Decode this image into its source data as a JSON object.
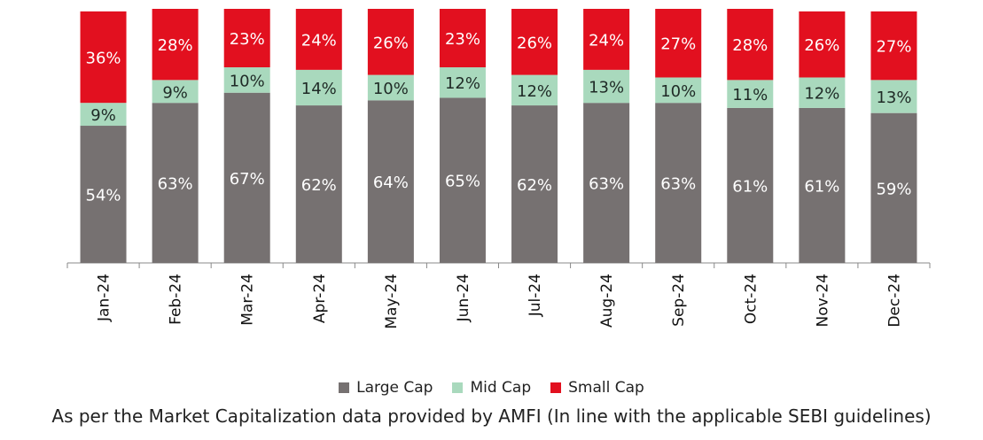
{
  "chart_data": {
    "type": "bar",
    "stacked": true,
    "categories": [
      "Jan-24",
      "Feb-24",
      "Mar-24",
      "Apr-24",
      "May-24",
      "Jun-24",
      "Jul-24",
      "Aug-24",
      "Sep-24",
      "Oct-24",
      "Nov-24",
      "Dec-24"
    ],
    "series": [
      {
        "name": "Large Cap",
        "color": "#767171",
        "values": [
          54,
          63,
          67,
          62,
          64,
          65,
          62,
          63,
          63,
          61,
          61,
          59
        ]
      },
      {
        "name": "Mid Cap",
        "color": "#a9d9bd",
        "values": [
          9,
          9,
          10,
          14,
          10,
          12,
          12,
          13,
          10,
          11,
          12,
          13
        ]
      },
      {
        "name": "Small Cap",
        "color": "#e2101f",
        "values": [
          36,
          28,
          23,
          24,
          26,
          23,
          26,
          24,
          27,
          28,
          26,
          27
        ]
      }
    ],
    "value_suffix": "%",
    "ylim": [
      0,
      100
    ],
    "legend_position": "bottom",
    "grid": false
  },
  "footnote": "As per the Market Capitalization data provided by AMFI (In line with the applicable SEBI guidelines)"
}
